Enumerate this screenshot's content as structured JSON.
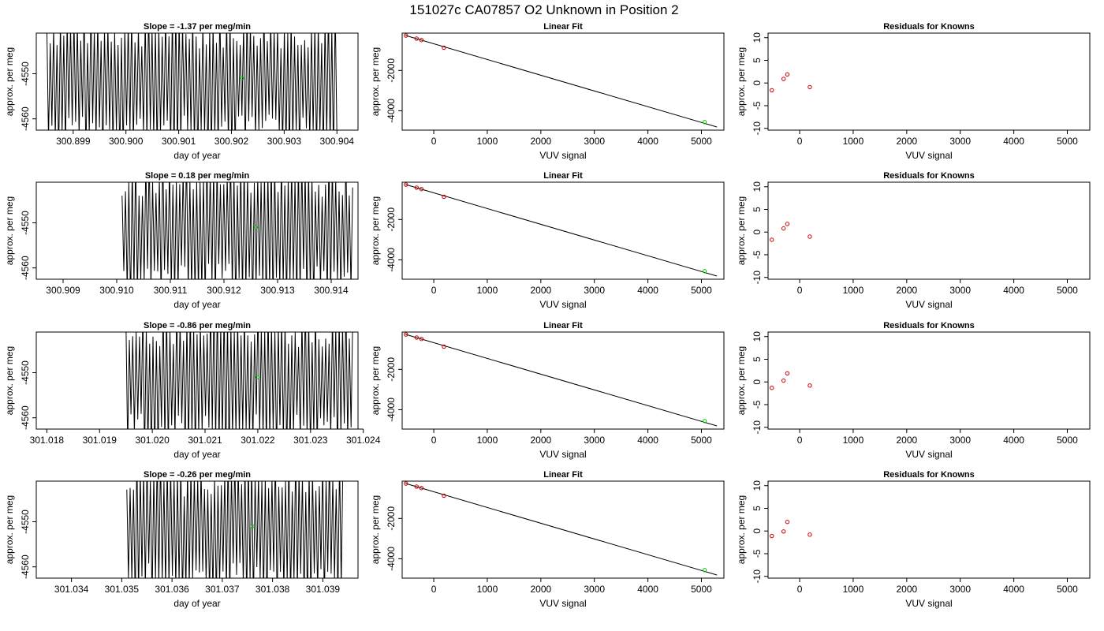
{
  "title": "151027c      CA07857   O2 Unknown in Position  2",
  "colors": {
    "trace": "#000000",
    "known": "#cc0000",
    "unknown": "#00cc00",
    "axis": "#000000"
  },
  "chart_data": [
    {
      "type": "line",
      "row": 1,
      "title": "Slope =  -1.37  per meg/min",
      "xlabel": "day of year",
      "ylabel": "approx. per meg",
      "xlim": [
        300.8983,
        300.9044
      ],
      "ylim": [
        -4562.5,
        -4541
      ],
      "xticks": [
        "300.899",
        "300.900",
        "300.901",
        "300.902",
        "300.903",
        "300.904"
      ],
      "xtick_values": [
        300.899,
        300.9,
        300.901,
        300.902,
        300.903,
        300.904
      ],
      "yticks": [
        "-4550",
        "-4560"
      ],
      "ytick_values": [
        -4550,
        -4560
      ],
      "trace_start": 300.8985,
      "trace_end": 300.904,
      "unknown_point": {
        "x": 300.9022,
        "y": -4551
      }
    },
    {
      "type": "scatter",
      "row": 1,
      "title": "Linear Fit",
      "xlabel": "VUV signal",
      "ylabel": "approx. per meg",
      "xlim": [
        -590,
        5420
      ],
      "ylim": [
        -4960,
        -150
      ],
      "xticks": [
        "0",
        "1000",
        "2000",
        "3000",
        "4000",
        "5000"
      ],
      "xtick_values": [
        0,
        1000,
        2000,
        3000,
        4000,
        5000
      ],
      "yticks": [
        "-2000",
        "-4000"
      ],
      "ytick_values": [
        -2000,
        -4000
      ],
      "knowns": [
        {
          "x": -520,
          "y": -270
        },
        {
          "x": -320,
          "y": -420
        },
        {
          "x": -230,
          "y": -490
        },
        {
          "x": 190,
          "y": -870
        }
      ],
      "unknown": {
        "x": 5060,
        "y": -4560
      },
      "fit_line": {
        "x": [
          -530,
          5290
        ],
        "y": [
          -262,
          -4805
        ]
      }
    },
    {
      "type": "scatter",
      "row": 1,
      "title": "Residuals for Knowns",
      "xlabel": "VUV signal",
      "ylabel": "approx. per meg",
      "xlim": [
        -590,
        5420
      ],
      "ylim": [
        -10.4,
        11
      ],
      "xticks": [
        "0",
        "1000",
        "2000",
        "3000",
        "4000",
        "5000"
      ],
      "xtick_values": [
        0,
        1000,
        2000,
        3000,
        4000,
        5000
      ],
      "yticks": [
        "-10",
        "-5",
        "0",
        "5",
        "10"
      ],
      "ytick_values": [
        -10,
        -5,
        0,
        5,
        10
      ],
      "points": [
        {
          "x": -520,
          "y": -1.6
        },
        {
          "x": -300,
          "y": 0.9
        },
        {
          "x": -230,
          "y": 1.9
        },
        {
          "x": 190,
          "y": -0.9
        }
      ]
    },
    {
      "type": "line",
      "row": 2,
      "title": "Slope =  0.18  per meg/min",
      "xlabel": "day of year",
      "ylabel": "approx. per meg",
      "xlim": [
        300.9085,
        300.9145
      ],
      "ylim": [
        -4562.5,
        -4541
      ],
      "xticks": [
        "300.909",
        "300.910",
        "300.911",
        "300.912",
        "300.913",
        "300.914"
      ],
      "xtick_values": [
        300.909,
        300.91,
        300.911,
        300.912,
        300.913,
        300.914
      ],
      "yticks": [
        "-4550",
        "-4560"
      ],
      "ytick_values": [
        -4550,
        -4560
      ],
      "trace_start": 300.9101,
      "trace_end": 300.9144,
      "unknown_point": {
        "x": 300.9126,
        "y": -4551
      }
    },
    {
      "type": "scatter",
      "row": 2,
      "title": "Linear Fit",
      "xlabel": "VUV signal",
      "ylabel": "approx. per meg",
      "xlim": [
        -590,
        5420
      ],
      "ylim": [
        -4960,
        -150
      ],
      "xticks": [
        "0",
        "1000",
        "2000",
        "3000",
        "4000",
        "5000"
      ],
      "xtick_values": [
        0,
        1000,
        2000,
        3000,
        4000,
        5000
      ],
      "yticks": [
        "-2000",
        "-4000"
      ],
      "ytick_values": [
        -2000,
        -4000
      ],
      "knowns": [
        {
          "x": -520,
          "y": -270
        },
        {
          "x": -320,
          "y": -420
        },
        {
          "x": -230,
          "y": -490
        },
        {
          "x": 190,
          "y": -870
        }
      ],
      "unknown": {
        "x": 5060,
        "y": -4560
      },
      "fit_line": {
        "x": [
          -530,
          5290
        ],
        "y": [
          -262,
          -4805
        ]
      }
    },
    {
      "type": "scatter",
      "row": 2,
      "title": "Residuals for Knowns",
      "xlabel": "VUV signal",
      "ylabel": "approx. per meg",
      "xlim": [
        -590,
        5420
      ],
      "ylim": [
        -10.4,
        11
      ],
      "xticks": [
        "0",
        "1000",
        "2000",
        "3000",
        "4000",
        "5000"
      ],
      "xtick_values": [
        0,
        1000,
        2000,
        3000,
        4000,
        5000
      ],
      "yticks": [
        "-10",
        "-5",
        "0",
        "5",
        "10"
      ],
      "ytick_values": [
        -10,
        -5,
        0,
        5,
        10
      ],
      "points": [
        {
          "x": -520,
          "y": -1.7
        },
        {
          "x": -300,
          "y": 0.8
        },
        {
          "x": -230,
          "y": 1.8
        },
        {
          "x": 190,
          "y": -1.0
        }
      ]
    },
    {
      "type": "line",
      "row": 3,
      "title": "Slope =  -0.86  per meg/min",
      "xlabel": "day of year",
      "ylabel": "approx. per meg",
      "xlim": [
        301.0178,
        301.0239
      ],
      "ylim": [
        -4562.5,
        -4541
      ],
      "xticks": [
        "301.018",
        "301.019",
        "301.020",
        "301.021",
        "301.022",
        "301.023",
        "301.024"
      ],
      "xtick_values": [
        301.018,
        301.019,
        301.02,
        301.021,
        301.022,
        301.023,
        301.024
      ],
      "yticks": [
        "-4550",
        "-4560"
      ],
      "ytick_values": [
        -4550,
        -4560
      ],
      "trace_start": 301.0195,
      "trace_end": 301.0238,
      "unknown_point": {
        "x": 301.022,
        "y": -4551
      }
    },
    {
      "type": "scatter",
      "row": 3,
      "title": "Linear Fit",
      "xlabel": "VUV signal",
      "ylabel": "approx. per meg",
      "xlim": [
        -590,
        5420
      ],
      "ylim": [
        -4960,
        -150
      ],
      "xticks": [
        "0",
        "1000",
        "2000",
        "3000",
        "4000",
        "5000"
      ],
      "xtick_values": [
        0,
        1000,
        2000,
        3000,
        4000,
        5000
      ],
      "yticks": [
        "-2000",
        "-4000"
      ],
      "ytick_values": [
        -2000,
        -4000
      ],
      "knowns": [
        {
          "x": -520,
          "y": -270
        },
        {
          "x": -320,
          "y": -420
        },
        {
          "x": -230,
          "y": -490
        },
        {
          "x": 190,
          "y": -870
        }
      ],
      "unknown": {
        "x": 5060,
        "y": -4560
      },
      "fit_line": {
        "x": [
          -530,
          5290
        ],
        "y": [
          -262,
          -4805
        ]
      }
    },
    {
      "type": "scatter",
      "row": 3,
      "title": "Residuals for Knowns",
      "xlabel": "VUV signal",
      "ylabel": "approx. per meg",
      "xlim": [
        -590,
        5420
      ],
      "ylim": [
        -10.4,
        11
      ],
      "xticks": [
        "0",
        "1000",
        "2000",
        "3000",
        "4000",
        "5000"
      ],
      "xtick_values": [
        0,
        1000,
        2000,
        3000,
        4000,
        5000
      ],
      "yticks": [
        "-10",
        "-5",
        "0",
        "5",
        "10"
      ],
      "ytick_values": [
        -10,
        -5,
        0,
        5,
        10
      ],
      "points": [
        {
          "x": -520,
          "y": -1.3
        },
        {
          "x": -300,
          "y": 0.3
        },
        {
          "x": -230,
          "y": 1.9
        },
        {
          "x": 190,
          "y": -0.8
        }
      ]
    },
    {
      "type": "line",
      "row": 4,
      "title": "Slope =  -0.26  per meg/min",
      "xlabel": "day of year",
      "ylabel": "approx. per meg",
      "xlim": [
        301.0333,
        301.0397
      ],
      "ylim": [
        -4562.5,
        -4541
      ],
      "xticks": [
        "301.034",
        "301.035",
        "301.036",
        "301.037",
        "301.038",
        "301.039"
      ],
      "xtick_values": [
        301.034,
        301.035,
        301.036,
        301.037,
        301.038,
        301.039
      ],
      "yticks": [
        "-4550",
        "-4560"
      ],
      "ytick_values": [
        -4550,
        -4560
      ],
      "trace_start": 301.0351,
      "trace_end": 301.0394,
      "unknown_point": {
        "x": 301.0376,
        "y": -4551
      }
    },
    {
      "type": "scatter",
      "row": 4,
      "title": "Linear Fit",
      "xlabel": "VUV signal",
      "ylabel": "approx. per meg",
      "xlim": [
        -590,
        5420
      ],
      "ylim": [
        -4960,
        -150
      ],
      "xticks": [
        "0",
        "1000",
        "2000",
        "3000",
        "4000",
        "5000"
      ],
      "xtick_values": [
        0,
        1000,
        2000,
        3000,
        4000,
        5000
      ],
      "yticks": [
        "-2000",
        "-4000"
      ],
      "ytick_values": [
        -2000,
        -4000
      ],
      "knowns": [
        {
          "x": -520,
          "y": -270
        },
        {
          "x": -320,
          "y": -420
        },
        {
          "x": -230,
          "y": -490
        },
        {
          "x": 190,
          "y": -870
        }
      ],
      "unknown": {
        "x": 5060,
        "y": -4560
      },
      "fit_line": {
        "x": [
          -530,
          5290
        ],
        "y": [
          -262,
          -4805
        ]
      }
    },
    {
      "type": "scatter",
      "row": 4,
      "title": "Residuals for Knowns",
      "xlabel": "VUV signal",
      "ylabel": "approx. per meg",
      "xlim": [
        -590,
        5420
      ],
      "ylim": [
        -10.4,
        11
      ],
      "xticks": [
        "0",
        "1000",
        "2000",
        "3000",
        "4000",
        "5000"
      ],
      "xtick_values": [
        0,
        1000,
        2000,
        3000,
        4000,
        5000
      ],
      "yticks": [
        "-10",
        "-5",
        "0",
        "5",
        "10"
      ],
      "ytick_values": [
        -10,
        -5,
        0,
        5,
        10
      ],
      "points": [
        {
          "x": -520,
          "y": -1.1
        },
        {
          "x": -300,
          "y": -0.1
        },
        {
          "x": -230,
          "y": 2.0
        },
        {
          "x": 190,
          "y": -0.8
        }
      ]
    }
  ]
}
